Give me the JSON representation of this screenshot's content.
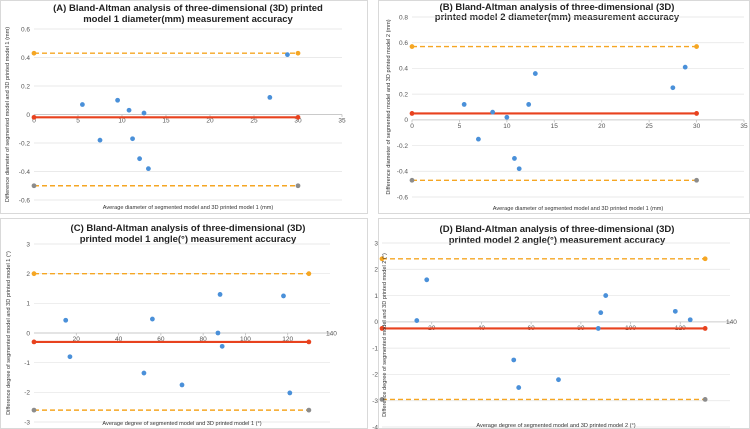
{
  "chart_data": [
    {
      "type": "scatter",
      "title_lines": [
        "(A) Bland-Altman analysis of three-dimensional (3D) printed",
        "model 1 diameter(mm) measurement accuracy"
      ],
      "xlabel": "Average diameter of segmented model and 3D printed model 1 (mm)",
      "ylabel": "Difference diameter of segmented model and 3D printed model 1 (mm)",
      "xlim": [
        0,
        35
      ],
      "ylim": [
        -0.6,
        0.6
      ],
      "xticks": [
        0,
        5,
        10,
        15,
        20,
        25,
        30,
        35
      ],
      "yticks": [
        -0.6,
        -0.4,
        -0.2,
        0,
        0.2,
        0.4,
        0.6
      ],
      "xtick_labels": [
        "0",
        "5",
        "10",
        "15",
        "20",
        "25",
        "30",
        "35"
      ],
      "ytick_labels": [
        "-0.6",
        "-0.4",
        "-0.2",
        "0",
        "0.2",
        "0.4",
        "0.6"
      ],
      "points": {
        "x": [
          5.5,
          7.5,
          9.5,
          10.8,
          11.2,
          12.0,
          12.5,
          13.0,
          26.8,
          28.8
        ],
        "y": [
          0.07,
          -0.18,
          0.1,
          0.03,
          -0.17,
          -0.31,
          0.01,
          -0.38,
          0.12,
          0.42
        ]
      },
      "mean_line": {
        "y": -0.02,
        "x_range": [
          0,
          30
        ]
      },
      "upper_loa": {
        "y": 0.43,
        "x_range": [
          0,
          30
        ]
      },
      "lower_loa": {
        "y": -0.5,
        "x_range": [
          0,
          30
        ]
      },
      "colors": {
        "points": "#4a90d9",
        "mean": "#e8421e",
        "upper": "#f5a623",
        "lower": "#f5a623",
        "upper_end": "#f5a623",
        "lower_end": "#8c8c8c"
      }
    },
    {
      "type": "scatter",
      "title_lines": [
        "(B) Bland-Altman analysis of three-dimensional (3D)",
        "printed model 2 diameter(mm) measurement accuracy"
      ],
      "xlabel": "Average diameter of segmented model and 3D printed model 1 (mm)",
      "ylabel": "Difference diameter of segmented model and 3D printed model 2 (mm)",
      "xlim": [
        0,
        35
      ],
      "ylim": [
        -0.6,
        0.8
      ],
      "xticks": [
        0,
        5,
        10,
        15,
        20,
        25,
        30,
        35
      ],
      "yticks": [
        -0.6,
        -0.4,
        -0.2,
        0,
        0.2,
        0.4,
        0.6,
        0.8
      ],
      "xtick_labels": [
        "0",
        "5",
        "10",
        "15",
        "20",
        "25",
        "30",
        "35"
      ],
      "ytick_labels": [
        "-0.6",
        "-0.4",
        "-0.2",
        "0",
        "0.2",
        "0.4",
        "0.6",
        "0.8"
      ],
      "points": {
        "x": [
          5.5,
          7.0,
          8.5,
          10.0,
          10.8,
          11.3,
          12.3,
          13.0,
          27.5,
          28.8
        ],
        "y": [
          0.12,
          -0.15,
          0.06,
          0.02,
          -0.3,
          -0.38,
          0.12,
          0.36,
          0.25,
          0.41
        ]
      },
      "mean_line": {
        "y": 0.05,
        "x_range": [
          0,
          30
        ]
      },
      "upper_loa": {
        "y": 0.57,
        "x_range": [
          0,
          30
        ]
      },
      "lower_loa": {
        "y": -0.47,
        "x_range": [
          0,
          30
        ]
      },
      "colors": {
        "points": "#4a90d9",
        "mean": "#e8421e",
        "upper": "#f5a623",
        "lower": "#f5a623",
        "upper_end": "#f5a623",
        "lower_end": "#8c8c8c"
      }
    },
    {
      "type": "scatter",
      "title_lines": [
        "(C) Bland-Altman analysis of three-dimensional (3D)",
        "printed model 1 angle(°) measurement accuracy"
      ],
      "xlabel": "Average degree of segmented model and 3D printed model 1 (°)",
      "ylabel": "Difference degree of segmented model and 3D printed model 1 (°)",
      "xlim": [
        0,
        140
      ],
      "ylim": [
        -3,
        3
      ],
      "xticks": [
        20,
        40,
        60,
        80,
        100,
        120,
        140
      ],
      "yticks": [
        -3,
        -2,
        -1,
        0,
        1,
        2,
        3
      ],
      "xtick_labels": [
        "20",
        "40",
        "60",
        "80",
        "100",
        "120",
        "140"
      ],
      "ytick_labels": [
        "-3",
        "-2",
        "-1",
        "0",
        "1",
        "2",
        "3"
      ],
      "points": {
        "x": [
          15,
          17,
          52,
          56,
          70,
          87,
          88,
          89,
          118,
          121
        ],
        "y": [
          0.43,
          -0.8,
          -1.35,
          0.47,
          -1.75,
          0.0,
          1.3,
          -0.45,
          1.25,
          -2.02
        ]
      },
      "mean_line": {
        "y": -0.3,
        "x_range": [
          0,
          130
        ]
      },
      "upper_loa": {
        "y": 2.0,
        "x_range": [
          0,
          130
        ]
      },
      "lower_loa": {
        "y": -2.6,
        "x_range": [
          0,
          130
        ]
      },
      "colors": {
        "points": "#4a90d9",
        "mean": "#e8421e",
        "upper": "#f5a623",
        "lower": "#f5a623",
        "upper_end": "#f5a623",
        "lower_end": "#8c8c8c"
      }
    },
    {
      "type": "scatter",
      "title_lines": [
        "(D) Bland-Altman analysis of three-dimensional (3D)",
        "printed model 2 angle(°) measurement accuracy"
      ],
      "xlabel": "Average degree of segmented model and 3D printed model 2 (°)",
      "ylabel": "Difference degree of segmented model and 3D printed model 2 (°)",
      "xlim": [
        0,
        140
      ],
      "ylim": [
        -4,
        3
      ],
      "xticks": [
        20,
        40,
        60,
        80,
        100,
        120,
        140
      ],
      "yticks": [
        -4,
        -3,
        -2,
        -1,
        0,
        1,
        2,
        3
      ],
      "xtick_labels": [
        "20",
        "40",
        "60",
        "80",
        "100",
        "120",
        "140"
      ],
      "ytick_labels": [
        "-4",
        "-3",
        "-2",
        "-1",
        "0",
        "1",
        "2",
        "3"
      ],
      "points": {
        "x": [
          14,
          18,
          53,
          55,
          71,
          87,
          88,
          90,
          118,
          124
        ],
        "y": [
          0.05,
          1.6,
          -1.45,
          -2.5,
          -2.2,
          -0.25,
          0.35,
          1.0,
          0.4,
          0.08
        ]
      },
      "mean_line": {
        "y": -0.25,
        "x_range": [
          0,
          130
        ]
      },
      "upper_loa": {
        "y": 2.4,
        "x_range": [
          0,
          130
        ]
      },
      "lower_loa": {
        "y": -2.95,
        "x_range": [
          0,
          130
        ]
      },
      "colors": {
        "points": "#4a90d9",
        "mean": "#e8421e",
        "upper": "#f5a623",
        "lower": "#f5a623",
        "upper_end": "#f5a623",
        "lower_end": "#8c8c8c"
      }
    }
  ]
}
